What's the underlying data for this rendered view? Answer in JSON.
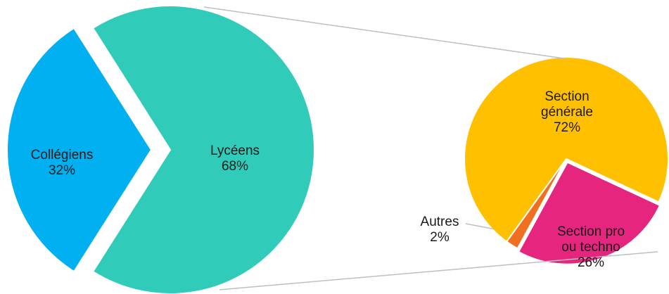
{
  "chart_data": [
    {
      "type": "pie",
      "categories": [
        "Collégiens",
        "Lycéens"
      ],
      "values": [
        32,
        68
      ],
      "value_labels": [
        "32%",
        "68%"
      ],
      "colors": [
        "#00b0f0",
        "#31cbb9"
      ]
    },
    {
      "type": "pie",
      "categories": [
        "Section générale",
        "Section pro ou techno",
        "Autres"
      ],
      "values": [
        72,
        26,
        2
      ],
      "value_labels": [
        "72%",
        "26%",
        "2%"
      ],
      "colors": [
        "#ffc000",
        "#e6267e",
        "#f07020"
      ]
    }
  ]
}
